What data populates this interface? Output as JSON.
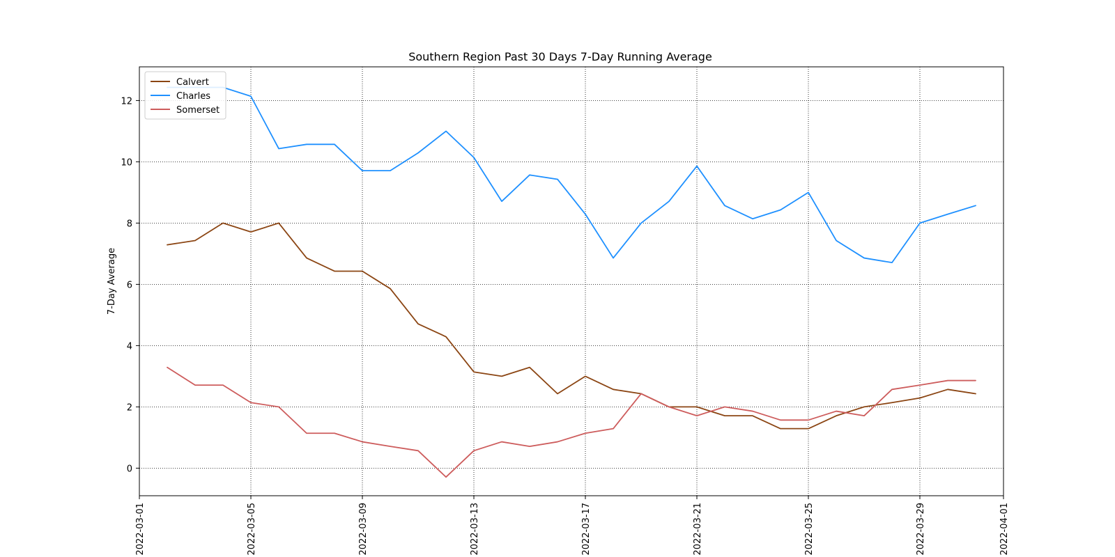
{
  "chart_data": {
    "type": "line",
    "title": "Southern Region Past 30 Days 7-Day Running Average",
    "xlabel": "",
    "ylabel": "7-Day Average",
    "xlim": [
      "2022-03-01",
      "2022-04-01"
    ],
    "ylim": [
      -0.9,
      13.1
    ],
    "x_ticks": [
      "2022-03-01",
      "2022-03-05",
      "2022-03-09",
      "2022-03-13",
      "2022-03-17",
      "2022-03-21",
      "2022-03-25",
      "2022-03-29",
      "2022-04-01"
    ],
    "y_ticks": [
      0,
      2,
      4,
      6,
      8,
      10,
      12
    ],
    "grid": true,
    "legend_position": "top-left",
    "x": [
      "2022-03-02",
      "2022-03-03",
      "2022-03-04",
      "2022-03-05",
      "2022-03-06",
      "2022-03-07",
      "2022-03-08",
      "2022-03-09",
      "2022-03-10",
      "2022-03-11",
      "2022-03-12",
      "2022-03-13",
      "2022-03-14",
      "2022-03-15",
      "2022-03-16",
      "2022-03-17",
      "2022-03-18",
      "2022-03-19",
      "2022-03-20",
      "2022-03-21",
      "2022-03-22",
      "2022-03-23",
      "2022-03-24",
      "2022-03-25",
      "2022-03-26",
      "2022-03-27",
      "2022-03-28",
      "2022-03-29",
      "2022-03-30",
      "2022-03-31"
    ],
    "series": [
      {
        "name": "Calvert",
        "color": "#8B4513",
        "values": [
          7.29,
          7.43,
          8.0,
          7.71,
          8.0,
          6.86,
          6.43,
          6.43,
          5.86,
          4.71,
          4.29,
          3.14,
          3.0,
          3.29,
          2.43,
          3.0,
          2.57,
          2.43,
          2.0,
          2.0,
          1.71,
          1.71,
          1.29,
          1.29,
          1.71,
          2.0,
          2.14,
          2.29,
          2.57,
          2.43
        ]
      },
      {
        "name": "Charles",
        "color": "#1E90FF",
        "values": [
          12.43,
          12.43,
          12.43,
          12.14,
          10.43,
          10.57,
          10.57,
          9.71,
          9.71,
          10.29,
          11.0,
          10.14,
          8.71,
          9.57,
          9.43,
          8.29,
          6.86,
          8.0,
          8.71,
          9.86,
          8.57,
          8.14,
          8.43,
          9.0,
          7.43,
          6.86,
          6.71,
          8.0,
          8.29,
          8.57
        ]
      },
      {
        "name": "Somerset",
        "color": "#CD5C5C",
        "values": [
          3.29,
          2.71,
          2.71,
          2.14,
          2.0,
          1.14,
          1.14,
          0.86,
          0.71,
          0.57,
          -0.29,
          0.57,
          0.86,
          0.71,
          0.86,
          1.14,
          1.29,
          2.43,
          2.0,
          1.71,
          2.0,
          1.86,
          1.57,
          1.57,
          1.86,
          1.71,
          2.57,
          2.71,
          2.86,
          2.86
        ]
      }
    ]
  }
}
